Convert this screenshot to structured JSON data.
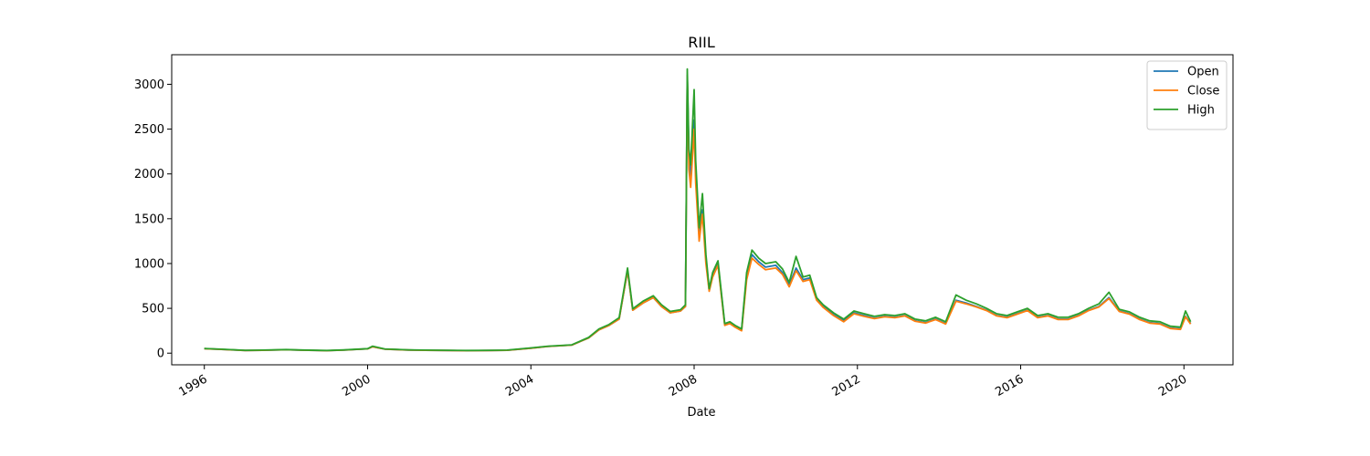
{
  "chart_data": {
    "type": "line",
    "title": "RIIL",
    "xlabel": "Date",
    "ylabel": "",
    "xlim": [
      "1995-03-15",
      "2021-03-15"
    ],
    "ylim": [
      -130,
      3330
    ],
    "x_ticks": [
      "1996",
      "2000",
      "2004",
      "2008",
      "2012",
      "2016",
      "2020"
    ],
    "y_ticks": [
      0,
      500,
      1000,
      1500,
      2000,
      2500,
      3000
    ],
    "grid": false,
    "legend_position": "top-right",
    "colors": {
      "Open": "#1f77b4",
      "Close": "#ff7f0e",
      "High": "#2ca02c"
    },
    "x": [
      "1996-01-01",
      "1996-06-01",
      "1997-01-01",
      "1997-06-01",
      "1998-01-01",
      "1998-06-01",
      "1999-01-01",
      "1999-06-01",
      "2000-01-01",
      "2000-02-15",
      "2000-06-01",
      "2001-01-01",
      "2001-06-01",
      "2002-01-01",
      "2002-06-01",
      "2003-01-01",
      "2003-06-01",
      "2004-01-01",
      "2004-06-01",
      "2005-01-01",
      "2005-06-01",
      "2005-09-01",
      "2005-12-01",
      "2006-03-01",
      "2006-05-15",
      "2006-07-01",
      "2006-10-01",
      "2007-01-01",
      "2007-03-15",
      "2007-06-01",
      "2007-09-01",
      "2007-10-15",
      "2007-11-01",
      "2007-11-15",
      "2007-12-01",
      "2008-01-01",
      "2008-01-15",
      "2008-02-15",
      "2008-03-15",
      "2008-04-15",
      "2008-05-15",
      "2008-06-15",
      "2008-08-01",
      "2008-10-01",
      "2008-11-15",
      "2009-01-01",
      "2009-03-01",
      "2009-04-15",
      "2009-06-01",
      "2009-08-01",
      "2009-10-01",
      "2010-01-01",
      "2010-03-01",
      "2010-05-01",
      "2010-07-01",
      "2010-09-01",
      "2010-11-01",
      "2011-01-01",
      "2011-03-01",
      "2011-06-01",
      "2011-09-01",
      "2011-12-01",
      "2012-03-01",
      "2012-06-01",
      "2012-09-01",
      "2012-12-01",
      "2013-03-01",
      "2013-06-01",
      "2013-09-01",
      "2013-12-01",
      "2014-03-01",
      "2014-06-01",
      "2014-09-01",
      "2014-12-01",
      "2015-03-01",
      "2015-06-01",
      "2015-09-01",
      "2015-12-01",
      "2016-03-01",
      "2016-06-01",
      "2016-09-01",
      "2016-12-01",
      "2017-03-01",
      "2017-06-01",
      "2017-09-01",
      "2017-12-01",
      "2018-03-01",
      "2018-06-01",
      "2018-09-01",
      "2018-12-01",
      "2019-03-01",
      "2019-06-01",
      "2019-09-01",
      "2019-12-01",
      "2020-01-15",
      "2020-03-01"
    ],
    "series": [
      {
        "name": "Open",
        "values": [
          50,
          42,
          30,
          32,
          38,
          33,
          28,
          34,
          48,
          72,
          45,
          35,
          32,
          30,
          28,
          30,
          32,
          55,
          75,
          90,
          170,
          260,
          310,
          380,
          920,
          480,
          560,
          620,
          520,
          450,
          470,
          520,
          3100,
          2200,
          1950,
          2600,
          2000,
          1300,
          1600,
          1050,
          700,
          870,
          1000,
          320,
          340,
          300,
          260,
          860,
          1100,
          1020,
          960,
          980,
          900,
          760,
          950,
          820,
          840,
          600,
          520,
          430,
          360,
          450,
          420,
          390,
          410,
          400,
          420,
          360,
          340,
          380,
          330,
          590,
          560,
          520,
          480,
          420,
          400,
          440,
          480,
          400,
          420,
          380,
          380,
          420,
          480,
          520,
          620,
          470,
          440,
          380,
          340,
          330,
          280,
          270,
          410,
          330
        ]
      },
      {
        "name": "Close",
        "values": [
          50,
          42,
          30,
          32,
          38,
          33,
          28,
          34,
          48,
          72,
          45,
          35,
          32,
          30,
          28,
          30,
          32,
          55,
          75,
          90,
          170,
          260,
          310,
          380,
          920,
          480,
          560,
          620,
          520,
          450,
          470,
          520,
          3100,
          2050,
          1850,
          2500,
          1900,
          1250,
          1550,
          1000,
          690,
          850,
          980,
          310,
          330,
          290,
          250,
          820,
          1060,
          990,
          930,
          950,
          880,
          740,
          920,
          800,
          820,
          590,
          510,
          420,
          350,
          440,
          410,
          385,
          405,
          395,
          415,
          355,
          335,
          375,
          325,
          580,
          550,
          515,
          475,
          415,
          395,
          435,
          475,
          395,
          415,
          375,
          375,
          415,
          475,
          515,
          610,
          465,
          435,
          375,
          335,
          325,
          275,
          265,
          405,
          325
        ]
      },
      {
        "name": "High",
        "values": [
          52,
          44,
          32,
          34,
          40,
          35,
          30,
          36,
          50,
          78,
          47,
          37,
          34,
          32,
          30,
          32,
          34,
          58,
          78,
          93,
          175,
          270,
          320,
          395,
          950,
          495,
          580,
          640,
          540,
          465,
          485,
          540,
          3170,
          2280,
          2100,
          2940,
          2150,
          1400,
          1780,
          1100,
          720,
          900,
          1030,
          330,
          350,
          310,
          270,
          900,
          1150,
          1060,
          1000,
          1020,
          940,
          790,
          1080,
          850,
          870,
          620,
          540,
          450,
          380,
          470,
          440,
          410,
          430,
          420,
          440,
          380,
          360,
          400,
          350,
          650,
          590,
          550,
          500,
          440,
          420,
          460,
          500,
          420,
          440,
          400,
          400,
          440,
          500,
          550,
          680,
          490,
          460,
          400,
          360,
          350,
          300,
          290,
          470,
          350
        ]
      }
    ]
  }
}
